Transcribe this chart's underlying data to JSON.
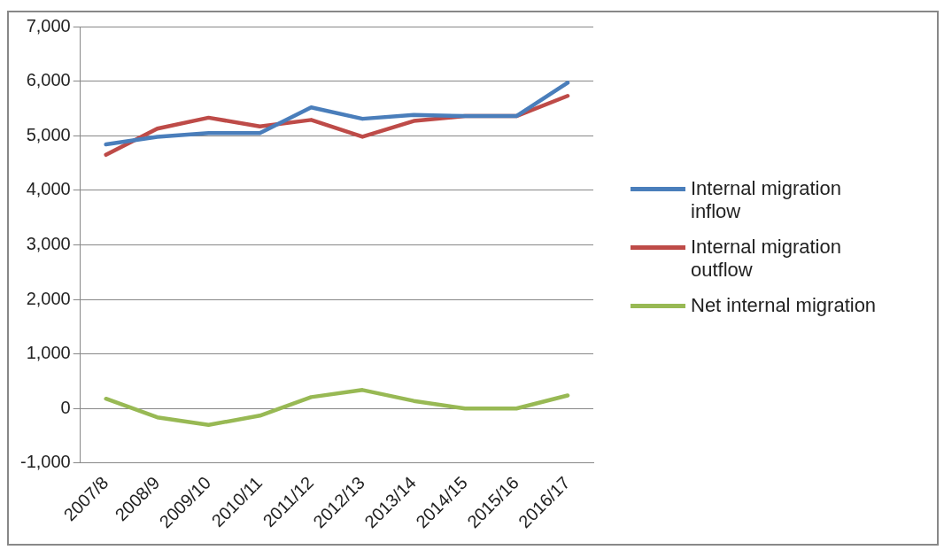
{
  "chart_data": {
    "type": "line",
    "categories": [
      "2007/8",
      "2008/9",
      "2009/10",
      "2010/11",
      "2011/12",
      "2012/13",
      "2013/14",
      "2014/15",
      "2015/16",
      "2016/17"
    ],
    "series": [
      {
        "name": "Internal migration inflow",
        "color": "#4a7ebb",
        "values": [
          4840,
          4980,
          5050,
          5050,
          5520,
          5310,
          5380,
          5360,
          5360,
          5970
        ]
      },
      {
        "name": "Internal migration outflow",
        "color": "#be4b48",
        "values": [
          4650,
          5130,
          5330,
          5170,
          5290,
          4980,
          5270,
          5360,
          5360,
          5730
        ]
      },
      {
        "name": "Net internal migration",
        "color": "#98b954",
        "values": [
          180,
          -160,
          -300,
          -130,
          210,
          340,
          140,
          0,
          0,
          240
        ]
      }
    ],
    "ylim": [
      -1000,
      7000
    ],
    "yticks": [
      {
        "value": -1000,
        "label": "-1,000"
      },
      0,
      {
        "value": 1000,
        "label": "1,000"
      },
      {
        "value": 2000,
        "label": "2,000"
      },
      {
        "value": 3000,
        "label": "3,000"
      },
      {
        "value": 4000,
        "label": "4,000"
      },
      {
        "value": 5000,
        "label": "5,000"
      },
      {
        "value": 6000,
        "label": "6,000"
      },
      {
        "value": 7000,
        "label": "7,000"
      }
    ],
    "grid": "y",
    "legend": "right",
    "marker": "none",
    "line_style": "solid"
  }
}
